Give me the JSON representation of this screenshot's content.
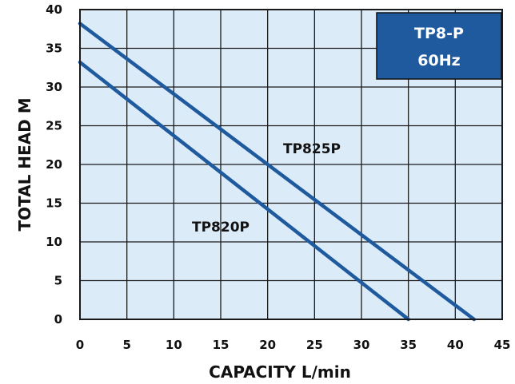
{
  "chart_data": {
    "type": "line",
    "title": "TP8-P",
    "subtitle": "60Hz",
    "xlabel": "CAPACITY L/min",
    "ylabel": "TOTAL HEAD M",
    "xlim": [
      0,
      45
    ],
    "ylim": [
      0,
      40
    ],
    "xticks": [
      "0",
      "5",
      "10",
      "15",
      "20",
      "25",
      "30",
      "35",
      "40",
      "45"
    ],
    "yticks": [
      "0",
      "5",
      "10",
      "15",
      "20",
      "25",
      "30",
      "35",
      "40"
    ],
    "grid": true,
    "series": [
      {
        "name": "TP825P",
        "x": [
          0,
          42
        ],
        "y": [
          38.2,
          0
        ]
      },
      {
        "name": "TP820P",
        "x": [
          0,
          35
        ],
        "y": [
          33.2,
          0
        ]
      }
    ],
    "colors": {
      "plot_background": "#dcebf8",
      "grid": "#1a1a1a",
      "line": "#1f5a9e",
      "title_box": "#1f5a9e",
      "title_text": "#ffffff"
    }
  }
}
